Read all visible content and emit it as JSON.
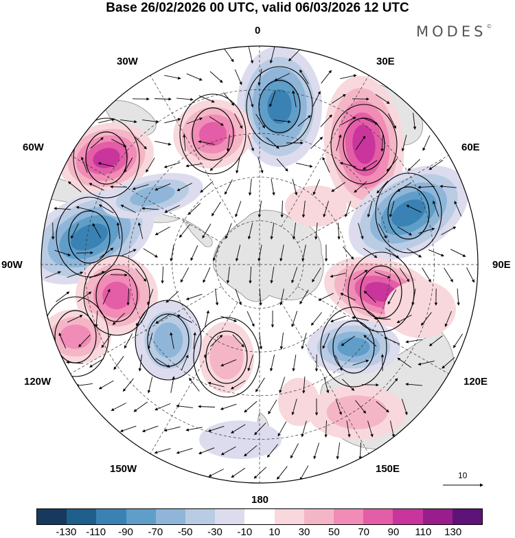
{
  "title": "Base 26/02/2026 00 UTC, valid 06/03/2026 12 UTC",
  "brand": {
    "name": "MODES",
    "mark": "©"
  },
  "longitude_labels": [
    "0",
    "30E",
    "60E",
    "90E",
    "120E",
    "150E",
    "180",
    "150W",
    "120W",
    "90W",
    "60W",
    "30W"
  ],
  "reference_vector": {
    "label": "10"
  },
  "colorbar": {
    "colors": [
      "#163a5e",
      "#1f5f8b",
      "#3a82b4",
      "#5f9ec8",
      "#8fb6d9",
      "#b9cce4",
      "#dcdcee",
      "#ffffff",
      "#f8d8dc",
      "#f4b6c6",
      "#f08cb6",
      "#e35ea6",
      "#c9359c",
      "#9a1d8c",
      "#5d1378"
    ],
    "tick_labels": [
      "-130",
      "-110",
      "-90",
      "-70",
      "-50",
      "-30",
      "-10",
      "10",
      "30",
      "50",
      "70",
      "90",
      "110",
      "130"
    ]
  },
  "colors": {
    "land": "#e4e4e4",
    "coast": "#888888",
    "grid": "#333333",
    "vector": "#000000"
  }
}
